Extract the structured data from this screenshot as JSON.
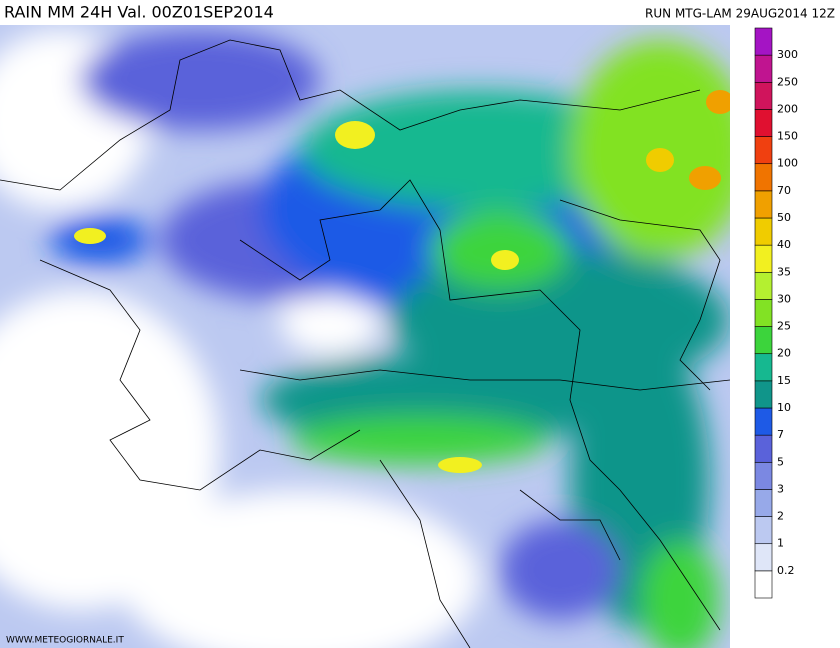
{
  "header": {
    "title": "RAIN  MM  24H  Val. 00Z01SEP2014",
    "run": "RUN  MTG-LAM  29AUG2014  12Z"
  },
  "colorbar": {
    "labels": [
      0.2,
      1,
      2,
      3,
      5,
      7,
      10,
      15,
      20,
      25,
      30,
      35,
      40,
      50,
      70,
      100,
      150,
      200,
      250,
      300
    ],
    "colors": [
      "#ffffff",
      "#dfe6f8",
      "#bcc9f1",
      "#97a9e9",
      "#7b88e2",
      "#5a62da",
      "#1e5ae6",
      "#10958a",
      "#16b890",
      "#3cd43c",
      "#82e224",
      "#b4f030",
      "#f2f020",
      "#f0cc00",
      "#f0a000",
      "#f07400",
      "#f04010",
      "#e01030",
      "#d0145c",
      "#c01490",
      "#a414c4"
    ]
  },
  "footer": {
    "credit": "WWW.METEOGIORNALE.IT"
  }
}
